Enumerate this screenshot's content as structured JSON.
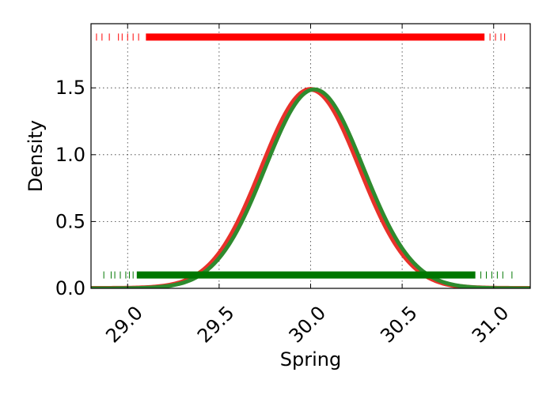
{
  "chart_data": {
    "type": "line",
    "title": "",
    "xlabel": "Spring",
    "ylabel": "Density",
    "xlim": [
      28.8,
      31.2
    ],
    "ylim": [
      0.0,
      1.98
    ],
    "x_ticks": [
      29.0,
      29.5,
      30.0,
      30.5,
      31.0
    ],
    "x_tick_labels": [
      "29.0",
      "29.5",
      "30.0",
      "30.5",
      "31.0"
    ],
    "y_ticks": [
      0.0,
      0.5,
      1.0,
      1.5
    ],
    "y_tick_labels": [
      "0.0",
      "0.5",
      "1.0",
      "1.5"
    ],
    "grid": true,
    "grid_style": "dotted",
    "series": [
      {
        "kind": "density-curve",
        "distribution": "normal",
        "mean": 30.0,
        "sd": 0.268,
        "color": "#e8312a",
        "linewidth": 6
      },
      {
        "kind": "density-curve",
        "distribution": "normal",
        "mean": 30.02,
        "sd": 0.268,
        "color": "#2e8b2e",
        "linewidth": 5
      },
      {
        "kind": "rug",
        "y": 1.88,
        "color": "#ff0000",
        "dense_range": [
          29.1,
          30.95
        ],
        "sparse_points": [
          28.83,
          28.86,
          28.9,
          28.95,
          28.97,
          29.0,
          29.03,
          29.06,
          30.98,
          31.01,
          31.04,
          31.06
        ]
      },
      {
        "kind": "rug",
        "y": 0.1,
        "color": "#007700",
        "dense_range": [
          29.05,
          30.9
        ],
        "sparse_points": [
          28.87,
          28.91,
          28.93,
          28.96,
          28.99,
          29.01,
          29.03,
          30.93,
          30.96,
          30.99,
          31.02,
          31.05,
          31.1
        ]
      }
    ]
  }
}
